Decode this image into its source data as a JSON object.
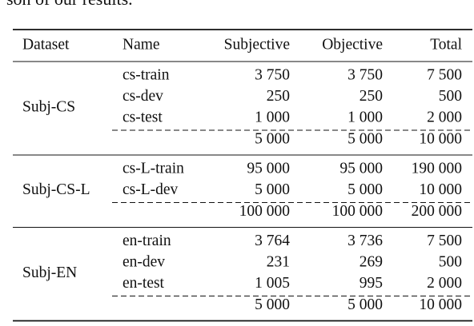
{
  "header": {
    "text": "son of our results."
  },
  "table": {
    "columns": [
      "Dataset",
      "Name",
      "Subjective",
      "Objective",
      "Total"
    ],
    "groups": [
      {
        "dataset": "Subj-CS",
        "rows": [
          [
            "cs-train",
            "3 750",
            "3 750",
            "7 500"
          ],
          [
            "cs-dev",
            "250",
            "250",
            "500"
          ],
          [
            "cs-test",
            "1 000",
            "1 000",
            "2 000"
          ]
        ],
        "totals": [
          "5 000",
          "5 000",
          "10 000"
        ]
      },
      {
        "dataset": "Subj-CS-L",
        "rows": [
          [
            "cs-L-train",
            "95 000",
            "95 000",
            "190 000"
          ],
          [
            "cs-L-dev",
            "5 000",
            "5 000",
            "10 000"
          ]
        ],
        "totals": [
          "100 000",
          "100 000",
          "200 000"
        ]
      },
      {
        "dataset": "Subj-EN",
        "rows": [
          [
            "en-train",
            "3 764",
            "3 736",
            "7 500"
          ],
          [
            "en-dev",
            "231",
            "269",
            "500"
          ],
          [
            "en-test",
            "1 005",
            "995",
            "2 000"
          ]
        ],
        "totals": [
          "5 000",
          "5 000",
          "10 000"
        ]
      }
    ]
  }
}
